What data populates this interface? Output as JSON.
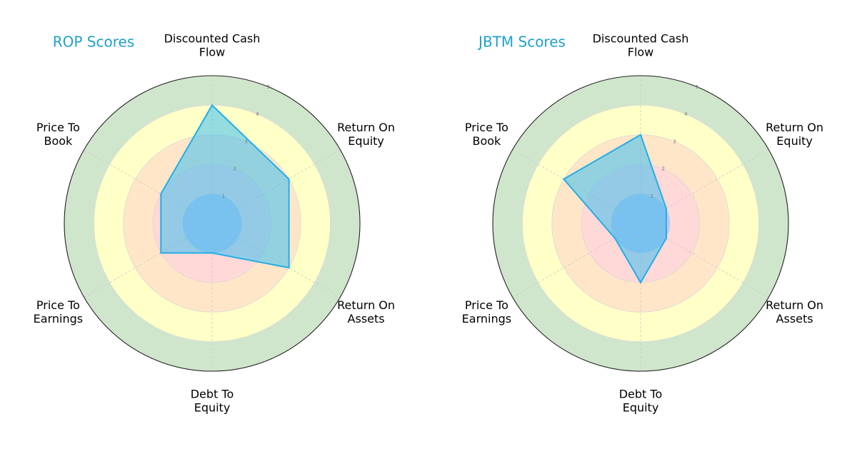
{
  "chart_data": [
    {
      "type": "radar",
      "title": "ROP Scores",
      "axes": [
        [
          "Discounted Cash",
          "Flow"
        ],
        [
          "Return On",
          "Equity"
        ],
        [
          "Return On",
          "Assets"
        ],
        [
          "Debt To",
          "Equity"
        ],
        [
          "Price To",
          "Earnings"
        ],
        [
          "Price To",
          "Book"
        ]
      ],
      "values": [
        4,
        3,
        3,
        1,
        2,
        2
      ],
      "rlim": [
        0,
        5
      ],
      "ticks": [
        1,
        2,
        3,
        4,
        5
      ],
      "grid": true
    },
    {
      "type": "radar",
      "title": "JBTM Scores",
      "axes": [
        [
          "Discounted Cash",
          "Flow"
        ],
        [
          "Return On",
          "Equity"
        ],
        [
          "Return On",
          "Assets"
        ],
        [
          "Debt To",
          "Equity"
        ],
        [
          "Price To",
          "Earnings"
        ],
        [
          "Price To",
          "Book"
        ]
      ],
      "values": [
        3,
        1,
        1,
        2,
        1,
        3
      ],
      "rlim": [
        0,
        5
      ],
      "ticks": [
        1,
        2,
        3,
        4,
        5
      ],
      "grid": true
    }
  ],
  "colors": {
    "title": "#1fa0c8",
    "series_fill": "#3cc0f0",
    "series_stroke": "#22aee8",
    "band_1": "#c4c4ee",
    "band_2": "#ffd8d8",
    "band_3": "#ffe6c8",
    "band_4": "#ffffc8",
    "band_5": "#d0e6cc"
  }
}
